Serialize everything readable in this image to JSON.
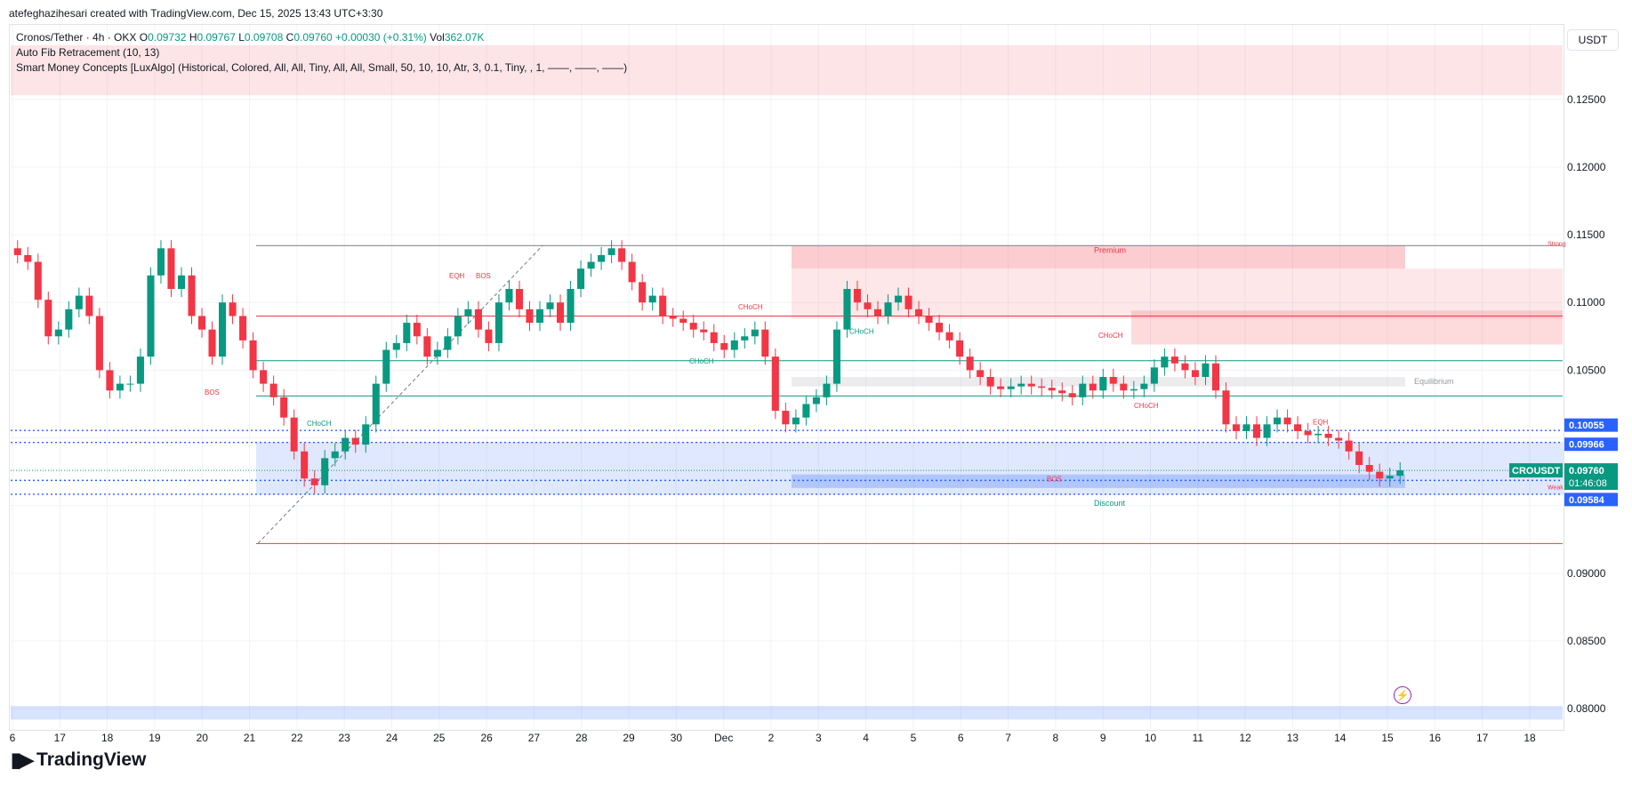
{
  "header": {
    "credit": "atefeghazihesari created with TradingView.com, Dec 15, 2025 13:43 UTC+3:30"
  },
  "legend": {
    "symbol": "Cronos/Tether · 4h · OKX",
    "o_label": "O",
    "o_value": "0.09732",
    "h_label": "H",
    "h_value": "0.09767",
    "l_label": "L",
    "l_value": "0.09708",
    "c_label": "C",
    "c_value": "0.09760",
    "change": "+0.00030 (+0.31%)",
    "vol_label": "Vol",
    "vol_value": "362.07K",
    "indicator1": "Auto Fib Retracement (10, 13)",
    "indicator2": "Smart Money Concepts [LuxAlgo] (Historical, Colored, All, All, Tiny, All, All, Small, 50, 10, 10, Atr, 3, 0.1, Tiny, , 1, ——, ——, ——)"
  },
  "currency": "USDT",
  "branding": {
    "logo_text": "TradingView",
    "logo_mark": "17"
  },
  "colors": {
    "up": "#089981",
    "down": "#f23645",
    "fib_blue": "#2962ff",
    "premium": "#f23645",
    "discount": "#2962ff",
    "grid": "#f0f3fa"
  },
  "chart_data": {
    "type": "candlestick",
    "timeframe": "4h",
    "ylim": [
      0.0785,
      0.1305
    ],
    "y_ticks": [
      0.08,
      0.085,
      0.09,
      0.095,
      0.1,
      0.105,
      0.11,
      0.115,
      0.12,
      0.125
    ],
    "y_tick_labels": [
      "0.08000",
      "0.08500",
      "0.09000",
      "",
      "",
      "0.10500",
      "0.11000",
      "0.11500",
      "0.12000",
      "0.12500"
    ],
    "x_labels": [
      "6",
      "17",
      "18",
      "19",
      "20",
      "21",
      "22",
      "23",
      "24",
      "25",
      "26",
      "27",
      "28",
      "29",
      "30",
      "Dec",
      "2",
      "3",
      "4",
      "5",
      "6",
      "7",
      "8",
      "9",
      "10",
      "11",
      "12",
      "13",
      "14",
      "15",
      "16",
      "17",
      "18"
    ],
    "current": {
      "symbol": "CROUSDT",
      "price": "0.09760",
      "countdown": "01:46:08"
    },
    "price_labels": [
      {
        "value": 0.10055,
        "text": "0.10055",
        "color": "#2962ff"
      },
      {
        "value": 0.09966,
        "text": "0.09966",
        "color": "#2962ff"
      },
      {
        "value": 0.09686,
        "text": "0.09686",
        "color": "#2962ff"
      },
      {
        "value": 0.09584,
        "text": "0.09584",
        "color": "#2962ff"
      }
    ],
    "fib_levels": [
      0.10055,
      0.09966,
      0.09686,
      0.09584
    ],
    "zones": [
      {
        "name": "Premium",
        "label": "Premium",
        "top": 0.1142,
        "bottom": 0.1125,
        "color": "#f23645"
      },
      {
        "name": "Equilibrium",
        "label": "Equilibrium",
        "top": 0.1045,
        "bottom": 0.1038,
        "color": "#b2b5be"
      },
      {
        "name": "Discount",
        "label": "Discount",
        "top": 0.0973,
        "bottom": 0.0963,
        "color": "#2962ff"
      }
    ],
    "structure_labels": [
      "BOS",
      "CHoCH",
      "EQH",
      "BOS",
      "CHoCH",
      "CHoCH",
      "CHoCH",
      "CHoCH",
      "CHoCH",
      "BOS",
      "EQH",
      "Strong",
      "Weak"
    ],
    "close": [
      0.1135,
      0.113,
      0.1102,
      0.1075,
      0.108,
      0.1095,
      0.1105,
      0.109,
      0.105,
      0.1035,
      0.104,
      0.104,
      0.106,
      0.112,
      0.114,
      0.111,
      0.112,
      0.109,
      0.108,
      0.106,
      0.11,
      0.109,
      0.1072,
      0.105,
      0.104,
      0.103,
      0.1015,
      0.099,
      0.097,
      0.0965,
      0.0985,
      0.099,
      0.1,
      0.0995,
      0.101,
      0.104,
      0.1065,
      0.107,
      0.1085,
      0.1075,
      0.106,
      0.1065,
      0.1075,
      0.109,
      0.1095,
      0.108,
      0.107,
      0.11,
      0.111,
      0.1095,
      0.1085,
      0.1095,
      0.11,
      0.1085,
      0.111,
      0.1125,
      0.113,
      0.1135,
      0.114,
      0.113,
      0.1115,
      0.11,
      0.1105,
      0.109,
      0.1088,
      0.1085,
      0.108,
      0.1078,
      0.107,
      0.1065,
      0.1072,
      0.1075,
      0.108,
      0.106,
      0.102,
      0.101,
      0.1015,
      0.1025,
      0.103,
      0.104,
      0.108,
      0.111,
      0.11,
      0.1095,
      0.109,
      0.11,
      0.1105,
      0.1095,
      0.109,
      0.1085,
      0.1078,
      0.1072,
      0.106,
      0.105,
      0.1045,
      0.1038,
      0.1036,
      0.1038,
      0.104,
      0.1038,
      0.1037,
      0.1035,
      0.1033,
      0.103,
      0.104,
      0.1035,
      0.1045,
      0.104,
      0.1035,
      0.1036,
      0.104,
      0.1052,
      0.106,
      0.1055,
      0.105,
      0.1045,
      0.1055,
      0.1035,
      0.101,
      0.1005,
      0.101,
      0.1,
      0.101,
      0.1015,
      0.101,
      0.1005,
      0.1002,
      0.1003,
      0.1,
      0.0998,
      0.099,
      0.098,
      0.0975,
      0.097,
      0.0972,
      0.0976
    ]
  }
}
